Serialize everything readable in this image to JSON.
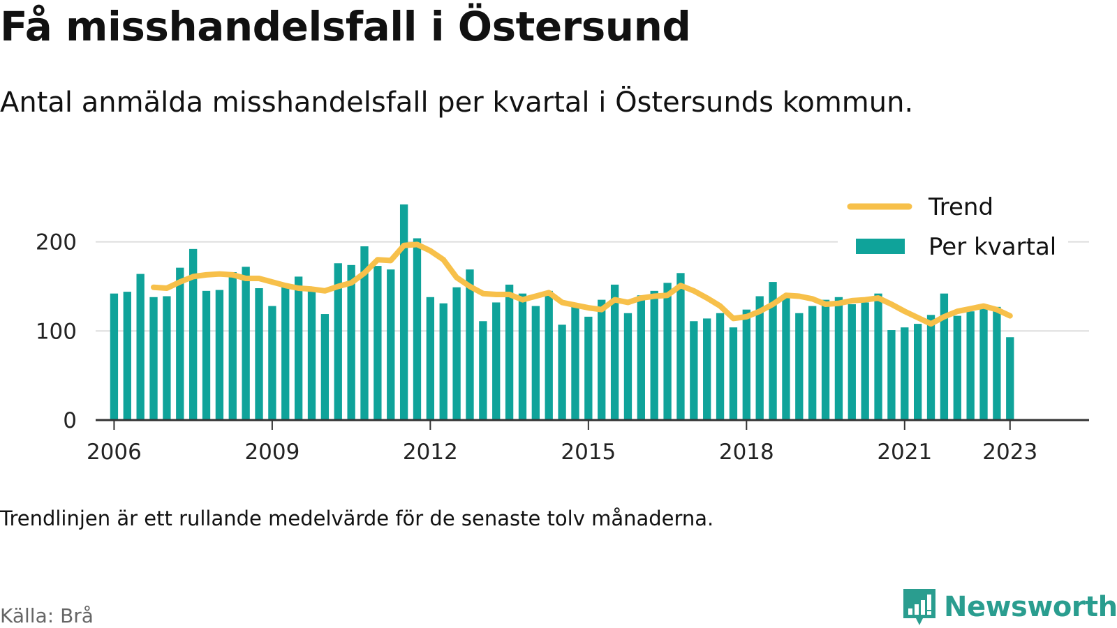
{
  "title": "Få misshandelsfall i Östersund",
  "subtitle": "Antal anmälda misshandelsfall per kvartal i Östersunds kommun.",
  "note": "Trendlinjen är ett rullande medelvärde för de senaste tolv månaderna.",
  "source": "Källa: Brå",
  "brand": {
    "name": "Newsworthy",
    "icon": "newsworthy-logo-icon",
    "color": "#2a9d8f"
  },
  "colors": {
    "bar": "#0fa39a",
    "trend": "#f7c04a",
    "grid": "#dddddd",
    "axis": "#333333"
  },
  "chart_data": {
    "type": "bar",
    "title": "Få misshandelsfall i Östersund",
    "subtitle": "Antal anmälda misshandelsfall per kvartal i Östersunds kommun.",
    "x_start": 2006.0,
    "x_step": 0.25,
    "xlim": [
      2005.65,
      2024.5
    ],
    "ylim": [
      0,
      260
    ],
    "yticks": [
      0,
      100,
      200
    ],
    "xticks": [
      2006,
      2009,
      2012,
      2015,
      2018,
      2021,
      2023
    ],
    "grid": true,
    "legend": "top-right",
    "series": [
      {
        "name": "Per kvartal",
        "kind": "bar",
        "values": [
          142,
          144,
          164,
          138,
          139,
          171,
          192,
          145,
          146,
          166,
          172,
          148,
          128,
          150,
          161,
          145,
          119,
          176,
          174,
          195,
          173,
          169,
          242,
          204,
          138,
          131,
          149,
          169,
          111,
          132,
          152,
          142,
          128,
          145,
          107,
          129,
          116,
          135,
          152,
          120,
          140,
          145,
          154,
          165,
          111,
          114,
          120,
          104,
          124,
          139,
          155,
          140,
          120,
          128,
          135,
          138,
          130,
          132,
          142,
          101,
          104,
          108,
          118,
          142,
          117,
          122,
          126,
          127,
          93
        ]
      },
      {
        "name": "Trend",
        "kind": "line",
        "x_start": 2006.75,
        "values": [
          149,
          148,
          155,
          161,
          163,
          164,
          163,
          159,
          159,
          155,
          151,
          148,
          147,
          145,
          150,
          154,
          165,
          180,
          179,
          196,
          197,
          190,
          180,
          160,
          150,
          142,
          141,
          141,
          135,
          139,
          143,
          132,
          129,
          126,
          124,
          135,
          132,
          137,
          139,
          140,
          151,
          145,
          137,
          128,
          114,
          116,
          122,
          130,
          140,
          139,
          136,
          130,
          131,
          134,
          135,
          137,
          130,
          122,
          115,
          108,
          116,
          122,
          125,
          128,
          124,
          117
        ]
      }
    ]
  }
}
